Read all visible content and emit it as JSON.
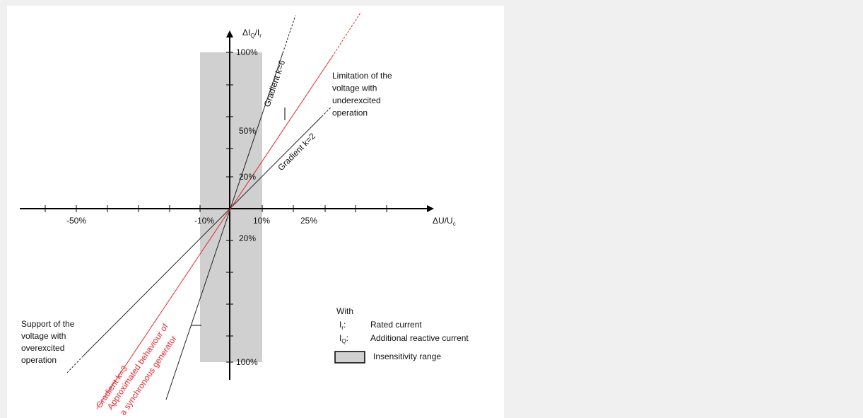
{
  "y_axis_label": [
    "ΔI",
    "Q",
    "/I",
    "r"
  ],
  "x_axis_label": [
    "ΔU/U",
    "c"
  ],
  "y_ticks_top": [
    "100%",
    "50%",
    "20%"
  ],
  "y_ticks_bottom": [
    "20%",
    "100%"
  ],
  "x_ticks": [
    "-50%",
    "-10%",
    "10%",
    "25%"
  ],
  "lines": {
    "k6": "Gradient k=6",
    "k2": "Gradient k=2",
    "k3": "Gradient k=3",
    "approx": [
      "Approximated behaviour of",
      "a synchronous generator"
    ]
  },
  "notes": {
    "limitation": [
      "Limitation of the",
      "voltage with",
      "underexcited",
      "operation"
    ],
    "support": [
      "Support of the",
      "voltage with",
      "overexcited",
      "operation"
    ]
  },
  "legend": {
    "title": "With",
    "items": [
      {
        "symbol": [
          "I",
          "r",
          ":"
        ],
        "text": "Rated current"
      },
      {
        "symbol": [
          "I",
          "Q",
          ":"
        ],
        "text": "Additional reactive current"
      }
    ],
    "range": "Insensitivity range"
  }
}
